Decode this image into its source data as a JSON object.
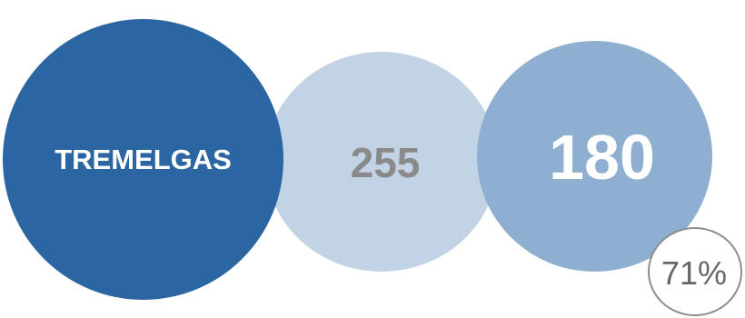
{
  "circles": {
    "primary": {
      "label": "TREMELGAS",
      "color": "#2c66a2"
    },
    "secondary": {
      "value": "255",
      "color": "#c2d3e6"
    },
    "tertiary": {
      "value": "180",
      "color": "#8eafd0"
    }
  },
  "badge": {
    "value": "71%",
    "border_color": "#8d8d8d"
  }
}
